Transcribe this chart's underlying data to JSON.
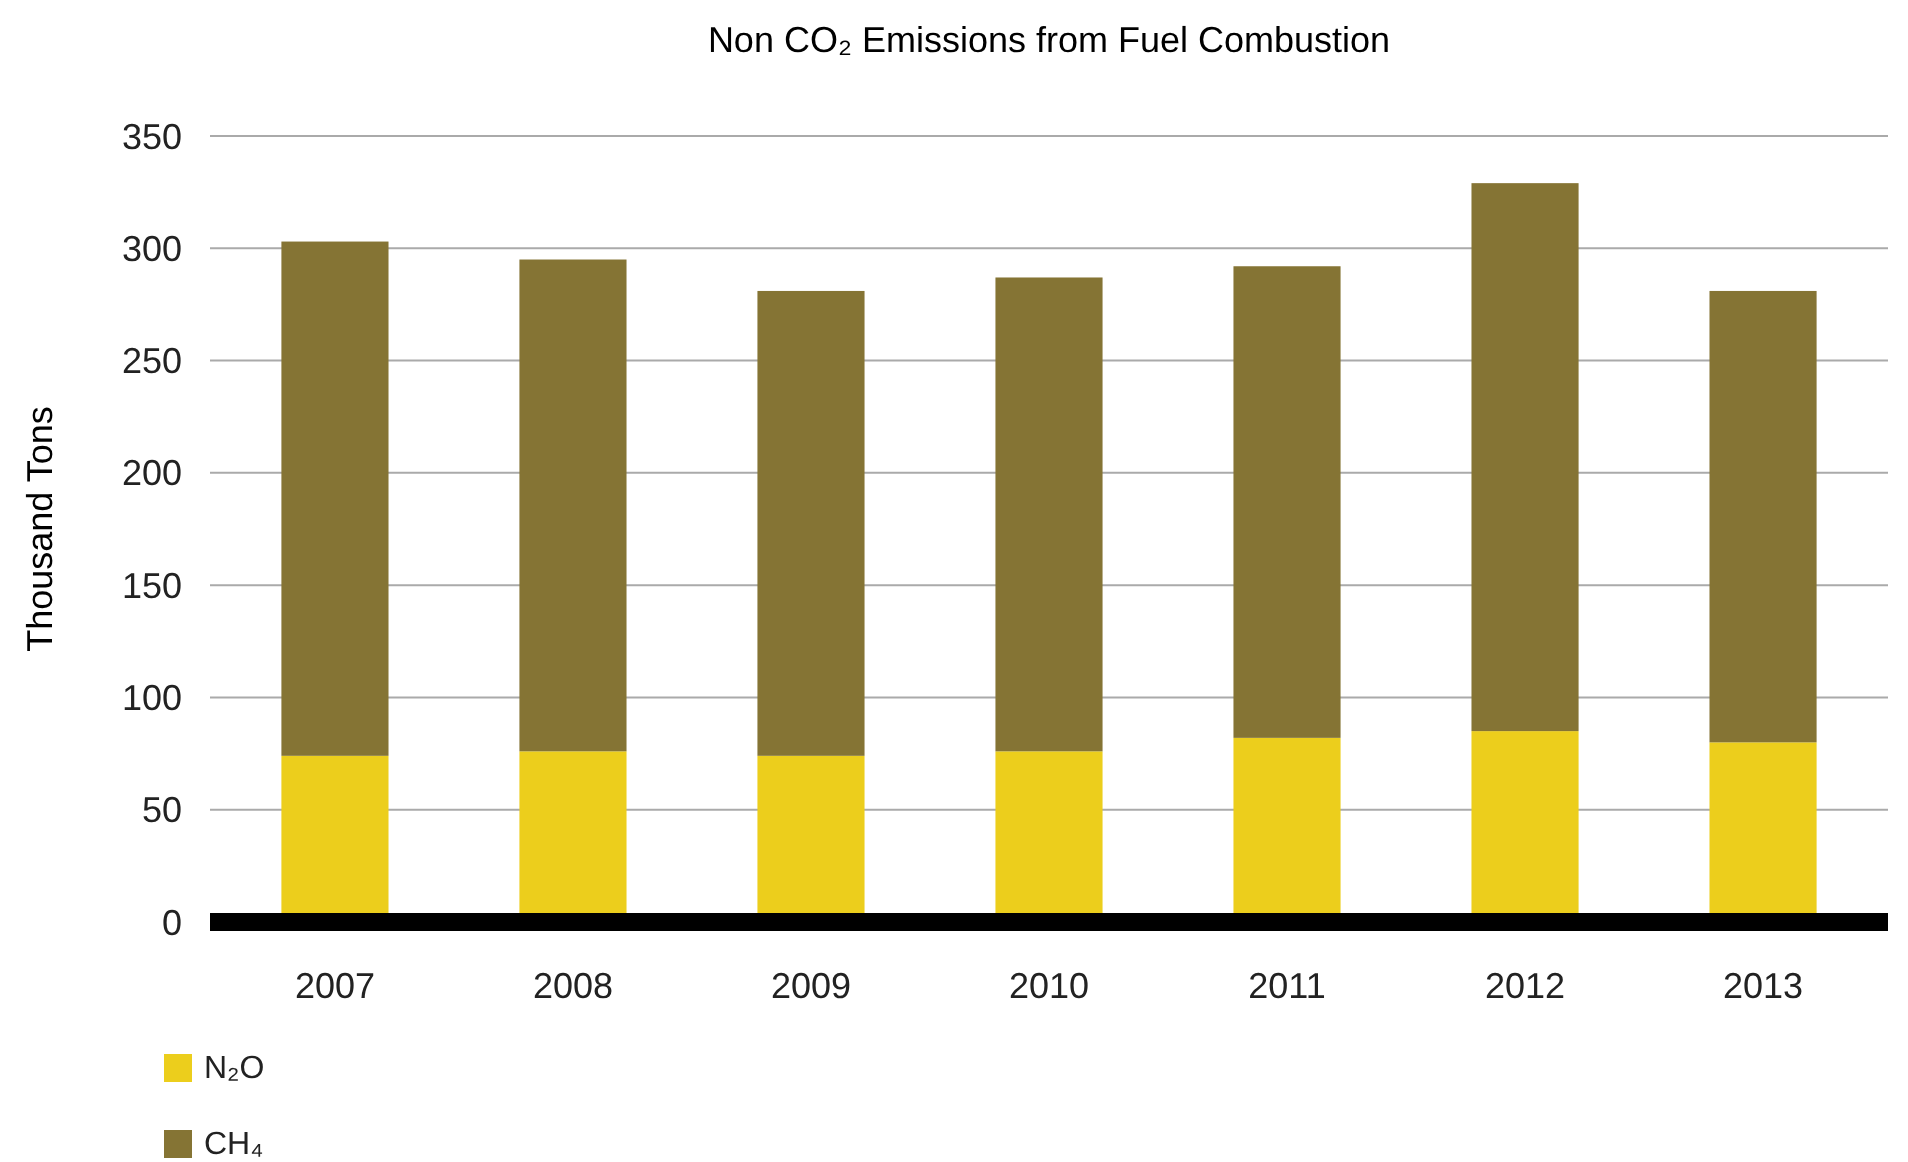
{
  "chart_data": {
    "type": "bar",
    "title": "Non CO₂ Emissions from Fuel Combustion",
    "ylabel": "Thousand Tons",
    "categories": [
      "2007",
      "2008",
      "2009",
      "2010",
      "2011",
      "2012",
      "2013"
    ],
    "stacked": true,
    "series": [
      {
        "name": "N₂O",
        "color": "#ecce1c",
        "values": [
          74,
          76,
          74,
          76,
          82,
          85,
          80
        ]
      },
      {
        "name": "CH₄",
        "color": "#857434",
        "values": [
          229,
          219,
          207,
          211,
          210,
          244,
          201
        ]
      }
    ],
    "ylim": [
      0,
      350
    ],
    "yticks": [
      0,
      50,
      100,
      150,
      200,
      250,
      300,
      350
    ],
    "grid": "y",
    "legend": "bottom left"
  }
}
